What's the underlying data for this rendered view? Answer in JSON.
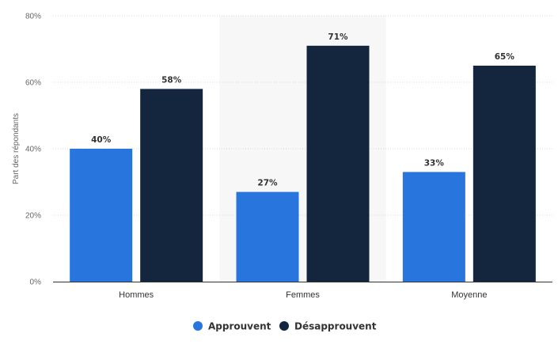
{
  "chart_data": {
    "type": "bar",
    "categories": [
      "Hommes",
      "Femmes",
      "Moyenne"
    ],
    "series": [
      {
        "name": "Approuvent",
        "values": [
          40,
          27,
          33
        ],
        "color": "#2876dd"
      },
      {
        "name": "Désapprouvent",
        "values": [
          58,
          71,
          65
        ],
        "color": "#14263d"
      }
    ],
    "value_labels": [
      [
        "40%",
        "27%",
        "33%"
      ],
      [
        "58%",
        "71%",
        "65%"
      ]
    ],
    "ylabel": "Part des répondants",
    "ylim": [
      0,
      80
    ],
    "yticks": [
      0,
      20,
      40,
      60,
      80
    ],
    "ytick_labels": [
      "0%",
      "20%",
      "40%",
      "60%",
      "80%"
    ],
    "grid": true,
    "legend_position": "bottom-center",
    "highlighted_category": "Femmes"
  }
}
